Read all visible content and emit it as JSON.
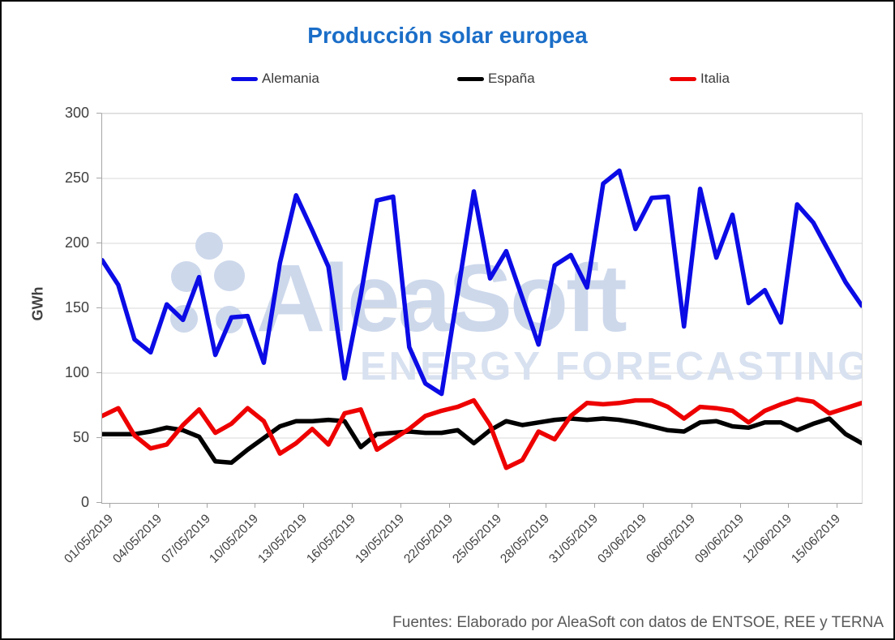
{
  "title": "Producción solar europea",
  "footer": "Fuentes: Elaborado por AleaSoft con datos de ENTSOE, REE y TERNA",
  "watermark": {
    "brand": "AleaSoft",
    "tagline": "ENERGY FORECASTING"
  },
  "axis": {
    "y_unit_label": "GWh"
  },
  "colors": {
    "title": "#1B6EC8",
    "gridline": "#D9D9D9",
    "axis_line": "#A6A6A6",
    "tick_label": "#404040",
    "footer_text": "#595959",
    "watermark": "#CDD8EB"
  },
  "chart_data": {
    "type": "line",
    "title": "Producción solar europea",
    "xlabel": "",
    "ylabel": "GWh",
    "ylim": [
      0,
      300
    ],
    "y_ticks": [
      0,
      50,
      100,
      150,
      200,
      250,
      300
    ],
    "grid": "horizontal",
    "legend_position": "top",
    "x_tick_labels": [
      "01/05/2019",
      "04/05/2019",
      "07/05/2019",
      "10/05/2019",
      "13/05/2019",
      "16/05/2019",
      "19/05/2019",
      "22/05/2019",
      "25/05/2019",
      "28/05/2019",
      "31/05/2019",
      "03/06/2019",
      "06/06/2019",
      "09/06/2019",
      "12/06/2019",
      "15/06/2019"
    ],
    "dates": [
      "01/05/2019",
      "02/05/2019",
      "03/05/2019",
      "04/05/2019",
      "05/05/2019",
      "06/05/2019",
      "07/05/2019",
      "08/05/2019",
      "09/05/2019",
      "10/05/2019",
      "11/05/2019",
      "12/05/2019",
      "13/05/2019",
      "14/05/2019",
      "15/05/2019",
      "16/05/2019",
      "17/05/2019",
      "18/05/2019",
      "19/05/2019",
      "20/05/2019",
      "21/05/2019",
      "22/05/2019",
      "23/05/2019",
      "24/05/2019",
      "25/05/2019",
      "26/05/2019",
      "27/05/2019",
      "28/05/2019",
      "29/05/2019",
      "30/05/2019",
      "31/05/2019",
      "01/06/2019",
      "02/06/2019",
      "03/06/2019",
      "04/06/2019",
      "05/06/2019",
      "06/06/2019",
      "07/06/2019",
      "08/06/2019",
      "09/06/2019",
      "10/06/2019",
      "11/06/2019",
      "12/06/2019",
      "13/06/2019",
      "14/06/2019",
      "15/06/2019",
      "16/06/2019",
      "17/06/2019"
    ],
    "series": [
      {
        "name": "Alemania",
        "color": "#0B0BE6",
        "values": [
          187,
          168,
          126,
          116,
          153,
          141,
          174,
          114,
          143,
          144,
          108,
          185,
          237,
          210,
          182,
          96,
          160,
          233,
          236,
          120,
          92,
          84,
          162,
          240,
          173,
          194,
          158,
          122,
          183,
          191,
          166,
          246,
          256,
          211,
          235,
          236,
          136,
          242,
          189,
          222,
          154,
          164,
          139,
          230,
          216,
          193,
          170,
          152
        ]
      },
      {
        "name": "España",
        "color": "#000000",
        "values": [
          53,
          53,
          53,
          55,
          58,
          56,
          51,
          32,
          31,
          41,
          50,
          59,
          63,
          63,
          64,
          63,
          43,
          53,
          54,
          55,
          54,
          54,
          56,
          46,
          56,
          63,
          60,
          62,
          64,
          65,
          64,
          65,
          64,
          62,
          59,
          56,
          55,
          62,
          63,
          59,
          58,
          62,
          62,
          56,
          61,
          65,
          53,
          46
        ]
      },
      {
        "name": "Italia",
        "color": "#EE0000",
        "values": [
          67,
          73,
          52,
          42,
          45,
          60,
          72,
          54,
          61,
          73,
          63,
          38,
          46,
          57,
          45,
          69,
          72,
          41,
          49,
          57,
          67,
          71,
          74,
          79,
          60,
          27,
          33,
          55,
          49,
          67,
          77,
          76,
          77,
          79,
          79,
          74,
          65,
          74,
          73,
          71,
          62,
          71,
          76,
          80,
          78,
          69,
          73,
          77
        ]
      }
    ]
  }
}
